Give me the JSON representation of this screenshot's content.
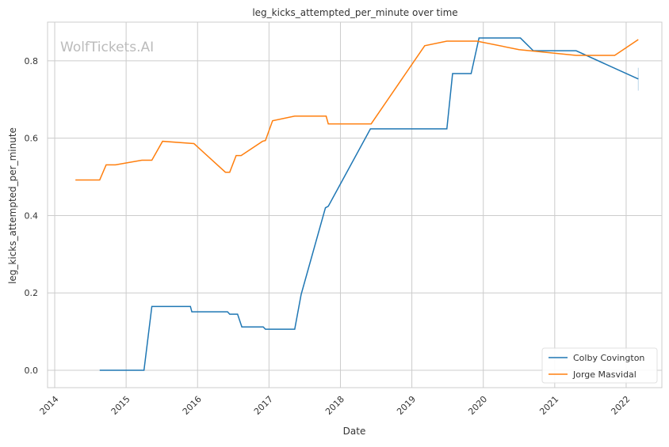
{
  "chart_data": {
    "type": "line",
    "title": "leg_kicks_attempted_per_minute over time",
    "xlabel": "Date",
    "ylabel": "leg_kicks_attempted_per_minute",
    "watermark": "WolfTickets.AI",
    "xlim": [
      2013.9,
      2022.5
    ],
    "ylim": [
      -0.045,
      0.9
    ],
    "xticks": [
      2014,
      2015,
      2016,
      2017,
      2018,
      2019,
      2020,
      2021,
      2022
    ],
    "yticks": [
      0.0,
      0.2,
      0.4,
      0.6,
      0.8
    ],
    "ytick_labels": [
      "0.0",
      "0.2",
      "0.4",
      "0.6",
      "0.8"
    ],
    "grid": true,
    "legend_position": "bottom-right",
    "series": [
      {
        "name": "Colby Covington",
        "color": "#1f77b4",
        "x": [
          2014.63,
          2015.25,
          2015.36,
          2015.9,
          2015.92,
          2016.42,
          2016.45,
          2016.56,
          2016.62,
          2016.92,
          2016.95,
          2017.36,
          2017.45,
          2017.79,
          2017.83,
          2018.42,
          2019.49,
          2019.57,
          2019.83,
          2019.94,
          2020.52,
          2020.7,
          2021.3,
          2022.17
        ],
        "y": [
          0,
          0,
          0.165,
          0.165,
          0.151,
          0.151,
          0.145,
          0.145,
          0.112,
          0.112,
          0.106,
          0.106,
          0.196,
          0.42,
          0.424,
          0.624,
          0.624,
          0.767,
          0.767,
          0.859,
          0.859,
          0.826,
          0.826,
          0.753
        ],
        "error_bar": {
          "x": 2022.17,
          "low": 0.723,
          "high": 0.782
        }
      },
      {
        "name": "Jorge Masvidal",
        "color": "#ff7f0e",
        "x": [
          2014.29,
          2014.63,
          2014.72,
          2014.85,
          2015.22,
          2015.36,
          2015.51,
          2015.95,
          2016.39,
          2016.45,
          2016.54,
          2016.61,
          2016.91,
          2016.95,
          2017.05,
          2017.36,
          2017.8,
          2017.83,
          2018.43,
          2019.18,
          2019.49,
          2019.91,
          2020.5,
          2021.3,
          2021.84,
          2022.17
        ],
        "y": [
          0.492,
          0.492,
          0.531,
          0.531,
          0.543,
          0.543,
          0.592,
          0.586,
          0.512,
          0.512,
          0.555,
          0.555,
          0.592,
          0.594,
          0.645,
          0.657,
          0.657,
          0.637,
          0.637,
          0.839,
          0.851,
          0.851,
          0.829,
          0.814,
          0.814,
          0.855
        ]
      }
    ]
  }
}
